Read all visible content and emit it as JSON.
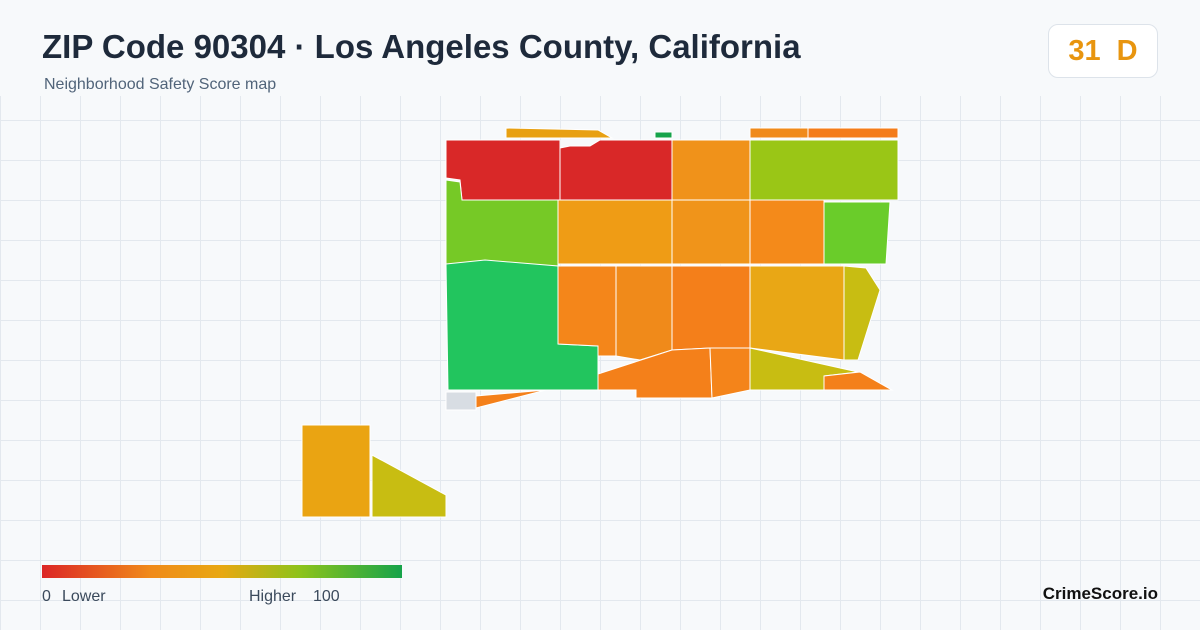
{
  "header": {
    "title": "ZIP Code 90304 · Los Angeles County, California",
    "subtitle": "Neighborhood Safety Score map"
  },
  "score": {
    "value": 31,
    "grade": "D"
  },
  "legend": {
    "min": 0,
    "min_label": "Lower",
    "max_label": "Higher",
    "max": 100
  },
  "brand": "CrimeScore.io"
}
